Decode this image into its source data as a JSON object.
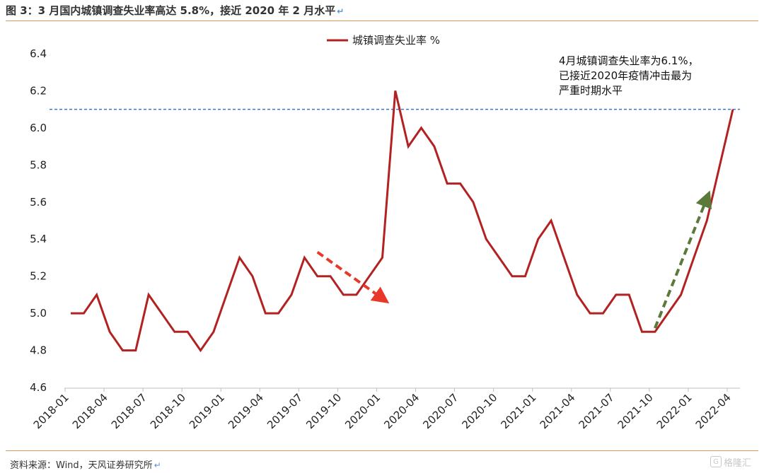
{
  "figure": {
    "title": "图 3：3 月国内城镇调查失业率高达 5.8%，接近 2020 年 2 月水平",
    "source": "资料来源：Wind，天风证券研究所",
    "watermark": "格隆汇"
  },
  "chart_data": {
    "type": "line",
    "title": "",
    "xlabel": "",
    "ylabel": "",
    "ylim": [
      4.6,
      6.4
    ],
    "yticks": [
      "6.4",
      "6.2",
      "6.0",
      "5.8",
      "5.6",
      "5.4",
      "5.2",
      "5.0",
      "4.8",
      "4.6"
    ],
    "grid": false,
    "legend_position": "top-center",
    "x": [
      "2018-01",
      "2018-02",
      "2018-03",
      "2018-04",
      "2018-05",
      "2018-06",
      "2018-07",
      "2018-08",
      "2018-09",
      "2018-10",
      "2018-11",
      "2018-12",
      "2019-01",
      "2019-02",
      "2019-03",
      "2019-04",
      "2019-05",
      "2019-06",
      "2019-07",
      "2019-08",
      "2019-09",
      "2019-10",
      "2019-11",
      "2019-12",
      "2020-01",
      "2020-02",
      "2020-03",
      "2020-04",
      "2020-05",
      "2020-06",
      "2020-07",
      "2020-08",
      "2020-09",
      "2020-10",
      "2020-11",
      "2020-12",
      "2021-01",
      "2021-02",
      "2021-03",
      "2021-04",
      "2021-05",
      "2021-06",
      "2021-07",
      "2021-08",
      "2021-09",
      "2021-10",
      "2021-11",
      "2021-12",
      "2022-01",
      "2022-02",
      "2022-03",
      "2022-04"
    ],
    "xtick_labels": [
      "2018-01",
      "2018-04",
      "2018-07",
      "2018-10",
      "2019-01",
      "2019-04",
      "2019-07",
      "2019-10",
      "2020-01",
      "2020-04",
      "2020-07",
      "2020-10",
      "2021-01",
      "2021-04",
      "2021-07",
      "2021-10",
      "2022-01",
      "2022-04"
    ],
    "series": [
      {
        "name": "城镇调查失业率 %",
        "color": "#b22222",
        "values": [
          5.0,
          5.0,
          5.1,
          4.9,
          4.8,
          4.8,
          5.1,
          5.0,
          4.9,
          4.9,
          4.8,
          4.9,
          5.1,
          5.3,
          5.2,
          5.0,
          5.0,
          5.1,
          5.3,
          5.2,
          5.2,
          5.1,
          5.1,
          5.2,
          5.3,
          6.2,
          5.9,
          6.0,
          5.9,
          5.7,
          5.7,
          5.6,
          5.4,
          5.3,
          5.2,
          5.2,
          5.4,
          5.5,
          5.3,
          5.1,
          5.0,
          5.0,
          5.1,
          5.1,
          4.9,
          4.9,
          5.0,
          5.1,
          5.3,
          5.5,
          5.8,
          6.1
        ]
      }
    ],
    "reference_line": {
      "value": 6.1,
      "color": "#4472c4",
      "style": "dashed"
    },
    "annotation": {
      "lines": [
        "4月城镇调查失业率为6.1%，",
        "已接近2020年疫情冲击最为",
        "严重时期水平"
      ]
    },
    "arrows": [
      {
        "color": "#e8382a",
        "from": [
          "2019-08",
          5.33
        ],
        "to": [
          "2020-01",
          5.08
        ]
      },
      {
        "color": "#5b7a3a",
        "from": [
          "2021-10",
          4.92
        ],
        "to": [
          "2022-02",
          5.62
        ]
      }
    ]
  }
}
